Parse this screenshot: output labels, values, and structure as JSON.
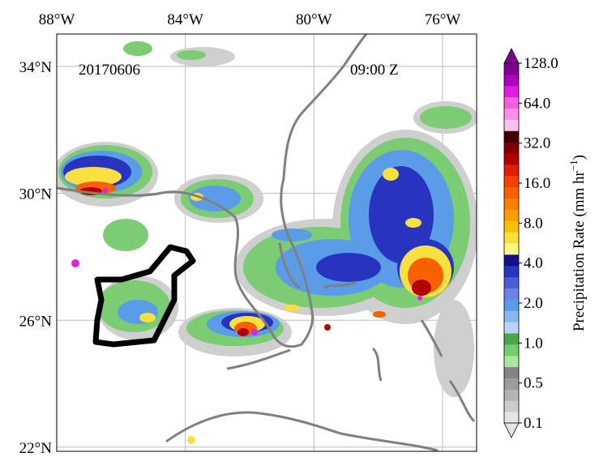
{
  "map": {
    "date": "20170606",
    "time": "09:00 Z",
    "lon_range": [
      -88,
      -74.94
    ],
    "lat_range": [
      21.87,
      35.02
    ],
    "lon_ticks": [
      {
        "value": -88,
        "label": "88°W"
      },
      {
        "value": -84,
        "label": "84°W"
      },
      {
        "value": -80,
        "label": "80°W"
      },
      {
        "value": -76,
        "label": "76°W"
      }
    ],
    "lat_ticks": [
      {
        "value": 34,
        "label": "34°N"
      },
      {
        "value": 30,
        "label": "30°N"
      },
      {
        "value": 26,
        "label": "26°N"
      },
      {
        "value": 22,
        "label": "22°N"
      }
    ]
  },
  "colorbar": {
    "title": "Precipitation Rate (mm hr",
    "exponent": "−1",
    "title_end": ")",
    "colors": [
      "#e4e4e4",
      "#cccccc",
      "#b4b4b4",
      "#9c9c9c",
      "#848484",
      "#a8e6a0",
      "#78cc70",
      "#4ea64a",
      "#b8d4f8",
      "#88b8f0",
      "#5a9ce8",
      "#6c84e8",
      "#4a5cd8",
      "#2834c0",
      "#10108c",
      "#f8f880",
      "#f8e040",
      "#f8c000",
      "#f8a000",
      "#f88000",
      "#f86000",
      "#f84000",
      "#e02000",
      "#b00000",
      "#800000",
      "#400000",
      "#f8c0f0",
      "#f890e8",
      "#f060e0",
      "#e020e0",
      "#b000c0",
      "#800090"
    ],
    "ticks": [
      {
        "value": 0.1,
        "label": "0.1"
      },
      {
        "value": 0.5,
        "label": "0.5"
      },
      {
        "value": 1,
        "label": "1.0"
      },
      {
        "value": 2,
        "label": "2.0"
      },
      {
        "value": 4,
        "label": "4.0"
      },
      {
        "value": 8,
        "label": "8.0"
      },
      {
        "value": 16,
        "label": "16.0"
      },
      {
        "value": 32,
        "label": "32.0"
      },
      {
        "value": 64,
        "label": "64.0"
      },
      {
        "value": 128,
        "label": "128.0"
      }
    ]
  }
}
